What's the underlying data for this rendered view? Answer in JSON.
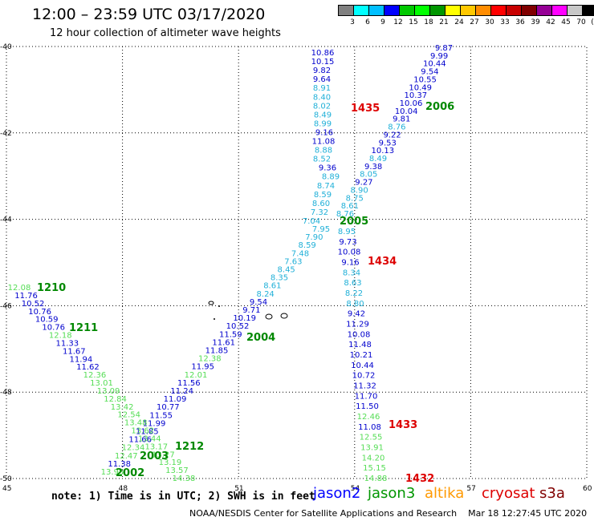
{
  "title": "12:00 – 23:59 UTC 03/17/2020",
  "subtitle": "12 hour collection of altimeter wave heights",
  "legend": {
    "colors": [
      "#808080",
      "#00ffff",
      "#00bfff",
      "#0000ff",
      "#00c800",
      "#00ff00",
      "#009600",
      "#ffff00",
      "#ffc800",
      "#ff8c00",
      "#ff0000",
      "#c80000",
      "#800000",
      "#960096",
      "#ff00ff",
      "#c8c8c8",
      "#000000"
    ],
    "labels": [
      "3",
      "6",
      "9",
      "12",
      "15",
      "18",
      "21",
      "24",
      "27",
      "30",
      "33",
      "36",
      "39",
      "42",
      "45",
      "70",
      "(ft)"
    ]
  },
  "axes": {
    "lat_labels": [
      "-40",
      "-42",
      "-44",
      "-46",
      "-48",
      "-50"
    ],
    "lon_labels": [
      "45",
      "48",
      "51",
      "54",
      "57",
      "60"
    ]
  },
  "tracks": [
    {
      "id": "t1435",
      "sat": "jason2",
      "color": "#0000cd",
      "label": "1435",
      "values": [
        "10.86",
        "10.15",
        "9.82",
        "9.64",
        "8.91",
        "8.40",
        "8.02",
        "8.49",
        "8.99",
        "9.16",
        "11.08",
        "8.88",
        "8.52",
        "9.36",
        "8.89",
        "8.74",
        "8.59",
        "8.60",
        "7.32",
        "7.04"
      ]
    },
    {
      "id": "t2006",
      "sat": "jason3",
      "color": "#0000cd",
      "label": "2006",
      "values": [
        "9.87",
        "9.99",
        "10.44",
        "9.54",
        "10.55",
        "10.49",
        "10.37",
        "10.06",
        "10.04",
        "9.81",
        "8.76",
        "9.22",
        "9.53",
        "10.13",
        "8.49",
        "9.38",
        "8.05",
        "9.27",
        "8.90",
        "8.75",
        "8.61",
        "8.76"
      ]
    },
    {
      "id": "t2005",
      "sat": "jason3",
      "color": "#0000cd",
      "label": "2005",
      "values": [
        "7.95",
        "7.90",
        "8.59",
        "7.48",
        "7.63",
        "8.45",
        "8.35",
        "8.61",
        "8.24",
        "9.54",
        "9.71",
        "10.19",
        "10.52",
        "11.59",
        "11.61",
        "11.85",
        "12.38",
        "11.95",
        "12.01",
        "11.56",
        "11.24",
        "11.09",
        "10.77",
        "11.55",
        "11.99",
        "11.85",
        "11.66",
        "12.34",
        "12.47",
        "11.38",
        "13.95"
      ]
    },
    {
      "id": "t1434",
      "sat": "jason2",
      "color": "#0000cd",
      "label": "1434",
      "values": [
        "8.95",
        "9.73",
        "10.08",
        "9.16",
        "8.34",
        "8.63",
        "8.22",
        "8.80",
        "9.42",
        "11.29",
        "10.08",
        "11.48",
        "10.21",
        "10.44",
        "10.72",
        "11.32",
        "11.70",
        "11.50",
        "12.46",
        "11.08",
        "12.55",
        "13.91",
        "14.20",
        "15.15",
        "14.88"
      ]
    },
    {
      "id": "t1210",
      "sat": "jason2",
      "color": "#0000cd",
      "label": "1210",
      "values": [
        "12.08",
        "11.76",
        "10.52",
        "10.76",
        "10.59",
        "10.76",
        "12.18",
        "11.33",
        "11.67",
        "11.94",
        "11.62",
        "12.36",
        "13.01",
        "13.09",
        "12.84",
        "13.42",
        "12.54",
        "13.48",
        "13.62",
        "13.44",
        "13.17",
        "13.27",
        "13.19",
        "13.57",
        "14.38"
      ]
    },
    {
      "id": "t1211",
      "sat": "jason2",
      "color": "#0000cd",
      "label": "1211",
      "values": []
    }
  ],
  "time_labels": [
    {
      "text": "1435",
      "color": "#dd0000"
    },
    {
      "text": "2006",
      "color": "#008800"
    },
    {
      "text": "2005",
      "color": "#008800"
    },
    {
      "text": "1434",
      "color": "#dd0000"
    },
    {
      "text": "1210",
      "color": "#008800"
    },
    {
      "text": "1211",
      "color": "#008800"
    },
    {
      "text": "2004",
      "color": "#008800"
    },
    {
      "text": "1212",
      "color": "#008800"
    },
    {
      "text": "2003",
      "color": "#008800"
    },
    {
      "text": "2002",
      "color": "#008800"
    },
    {
      "text": "1433",
      "color": "#dd0000"
    },
    {
      "text": "1432",
      "color": "#dd0000"
    }
  ],
  "note": "note: 1) Time is in UTC; 2) SWH is in feet",
  "satellites": [
    {
      "name": "jason2",
      "color": "#0000ff"
    },
    {
      "name": "jason3",
      "color": "#009600"
    },
    {
      "name": "altika",
      "color": "#ff9900"
    },
    {
      "name": "cryosat",
      "color": "#dd0000"
    },
    {
      "name": "s3a",
      "color": "#800000"
    }
  ],
  "footer": "NOAA/NESDIS Center for Satellite Applications and Research    Mar 18 12:27:45 UTC 2020"
}
